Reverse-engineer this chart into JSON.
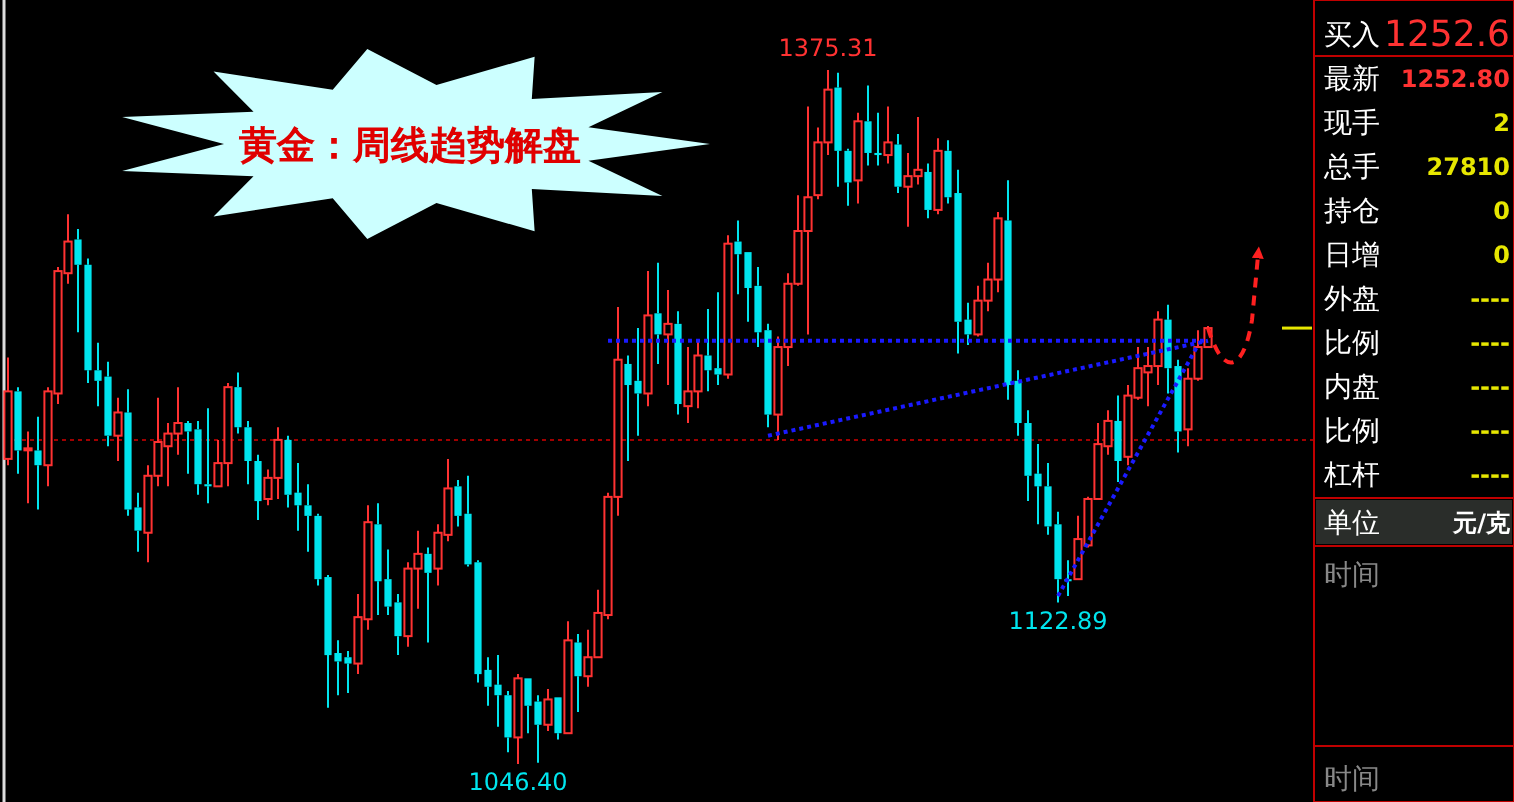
{
  "chart_data": [
    {
      "type": "candlestick",
      "title": "黄金：周线趋势解盘",
      "categories": [
        null,
        null,
        null,
        null,
        null,
        null,
        null,
        null,
        null,
        null,
        null,
        null,
        null,
        null,
        null,
        null,
        null,
        null,
        null,
        null,
        null,
        null,
        null,
        null,
        null,
        null,
        null,
        null,
        null,
        null,
        null,
        null,
        null,
        null,
        null,
        null,
        null,
        null,
        null,
        null,
        null,
        null,
        null,
        null,
        null,
        null,
        null,
        null,
        null,
        null,
        null,
        null,
        null,
        null,
        null,
        null,
        null,
        null,
        null,
        null,
        null,
        null,
        null,
        null,
        null,
        null,
        null,
        null,
        null,
        null,
        null,
        null,
        null,
        null,
        null,
        null,
        null,
        null,
        null,
        null,
        null,
        null,
        null,
        null,
        null,
        null,
        null,
        null,
        null,
        null,
        null,
        null,
        null,
        null,
        null,
        null,
        null,
        null,
        null,
        null,
        null,
        null,
        null,
        null,
        null,
        null,
        null,
        null,
        null,
        null,
        null,
        null,
        null,
        null,
        null,
        null,
        null,
        null,
        null,
        null,
        null
      ],
      "ohlc": [
        [
          1191,
          1239,
          1188,
          1223
        ],
        [
          1223,
          1225,
          1184,
          1195
        ],
        [
          1196,
          1204,
          1170,
          1196
        ],
        [
          1195,
          1211,
          1167,
          1188
        ],
        [
          1188,
          1225,
          1178,
          1223
        ],
        [
          1222,
          1282,
          1217,
          1280
        ],
        [
          1279,
          1307,
          1274,
          1294
        ],
        [
          1295,
          1300,
          1251,
          1283
        ],
        [
          1283,
          1286,
          1227,
          1233
        ],
        [
          1233,
          1246,
          1216,
          1228
        ],
        [
          1230,
          1237,
          1197,
          1202
        ],
        [
          1202,
          1220,
          1190,
          1213
        ],
        [
          1213,
          1224,
          1164,
          1167
        ],
        [
          1168,
          1175,
          1147,
          1157
        ],
        [
          1156,
          1188,
          1142,
          1183
        ],
        [
          1183,
          1220,
          1178,
          1199
        ],
        [
          1197,
          1208,
          1178,
          1203
        ],
        [
          1203,
          1225,
          1193,
          1208
        ],
        [
          1208,
          1209,
          1184,
          1204
        ],
        [
          1205,
          1209,
          1174,
          1179
        ],
        [
          1179,
          1215,
          1170,
          1178
        ],
        [
          1178,
          1200,
          1178,
          1189
        ],
        [
          1189,
          1227,
          1178,
          1225
        ],
        [
          1225,
          1232,
          1203,
          1206
        ],
        [
          1206,
          1209,
          1179,
          1190
        ],
        [
          1190,
          1193,
          1162,
          1171
        ],
        [
          1172,
          1186,
          1169,
          1182
        ],
        [
          1182,
          1206,
          1172,
          1200
        ],
        [
          1200,
          1202,
          1168,
          1174
        ],
        [
          1175,
          1189,
          1157,
          1169
        ],
        [
          1169,
          1179,
          1147,
          1164
        ],
        [
          1164,
          1165,
          1131,
          1134
        ],
        [
          1135,
          1136,
          1073,
          1098
        ],
        [
          1099,
          1105,
          1079,
          1095
        ],
        [
          1097,
          1100,
          1080,
          1094
        ],
        [
          1094,
          1127,
          1089,
          1116
        ],
        [
          1115,
          1169,
          1110,
          1161
        ],
        [
          1160,
          1170,
          1117,
          1133
        ],
        [
          1134,
          1148,
          1117,
          1121
        ],
        [
          1123,
          1127,
          1098,
          1107
        ],
        [
          1107,
          1142,
          1102,
          1139
        ],
        [
          1139,
          1157,
          1120,
          1146
        ],
        [
          1146,
          1149,
          1104,
          1137
        ],
        [
          1139,
          1160,
          1131,
          1156
        ],
        [
          1155,
          1191,
          1152,
          1177
        ],
        [
          1178,
          1181,
          1159,
          1164
        ],
        [
          1165,
          1183,
          1140,
          1141
        ],
        [
          1142,
          1143,
          1085,
          1089
        ],
        [
          1091,
          1097,
          1074,
          1083
        ],
        [
          1084,
          1098,
          1064,
          1079
        ],
        [
          1079,
          1081,
          1052,
          1059
        ],
        [
          1059,
          1089,
          1046.4,
          1087
        ],
        [
          1087,
          1087,
          1061,
          1074
        ],
        [
          1076,
          1079,
          1047,
          1065
        ],
        [
          1065,
          1082,
          1062,
          1077
        ],
        [
          1078,
          1078,
          1058,
          1061
        ],
        [
          1061,
          1114,
          1061,
          1105
        ],
        [
          1104,
          1108,
          1071,
          1088
        ],
        [
          1088,
          1110,
          1083,
          1097
        ],
        [
          1097,
          1129,
          1097,
          1118
        ],
        [
          1117,
          1175,
          1115,
          1173
        ],
        [
          1173,
          1263,
          1164,
          1238
        ],
        [
          1236,
          1240,
          1190,
          1226
        ],
        [
          1228,
          1253,
          1202,
          1222
        ],
        [
          1222,
          1280,
          1216,
          1259
        ],
        [
          1260,
          1284,
          1236,
          1250
        ],
        [
          1250,
          1271,
          1226,
          1255
        ],
        [
          1255,
          1261,
          1212,
          1217
        ],
        [
          1216,
          1244,
          1208,
          1223
        ],
        [
          1223,
          1247,
          1215,
          1240
        ],
        [
          1240,
          1262,
          1223,
          1233
        ],
        [
          1234,
          1270,
          1226,
          1231
        ],
        [
          1231,
          1297,
          1229,
          1293
        ],
        [
          1294,
          1304,
          1269,
          1288
        ],
        [
          1289,
          1289,
          1256,
          1272
        ],
        [
          1273,
          1282,
          1244,
          1251
        ],
        [
          1252,
          1255,
          1206,
          1212
        ],
        [
          1212,
          1249,
          1200,
          1244
        ],
        [
          1244,
          1279,
          1235,
          1274
        ],
        [
          1274,
          1316,
          1273,
          1299
        ],
        [
          1299,
          1358,
          1250,
          1315
        ],
        [
          1316,
          1348,
          1314,
          1341
        ],
        [
          1341,
          1375.31,
          1335,
          1366
        ],
        [
          1367,
          1374,
          1320,
          1337
        ],
        [
          1337,
          1338,
          1311,
          1322
        ],
        [
          1323,
          1355,
          1312,
          1351
        ],
        [
          1351,
          1368,
          1330,
          1336
        ],
        [
          1336,
          1355,
          1330,
          1335
        ],
        [
          1335,
          1358,
          1331,
          1341
        ],
        [
          1340,
          1345,
          1317,
          1320
        ],
        [
          1320,
          1336,
          1301,
          1325
        ],
        [
          1325,
          1353,
          1321,
          1328
        ],
        [
          1327,
          1331,
          1305,
          1309
        ],
        [
          1309,
          1343,
          1307,
          1337
        ],
        [
          1337,
          1342,
          1312,
          1315
        ],
        [
          1317,
          1328,
          1241,
          1256
        ],
        [
          1257,
          1265,
          1245,
          1250
        ],
        [
          1250,
          1273,
          1249,
          1266
        ],
        [
          1266,
          1284,
          1261,
          1276
        ],
        [
          1276,
          1308,
          1270,
          1305
        ],
        [
          1304,
          1323,
          1219,
          1226
        ],
        [
          1228,
          1233,
          1202,
          1208
        ],
        [
          1208,
          1214,
          1171,
          1183
        ],
        [
          1184,
          1198,
          1160,
          1178
        ],
        [
          1178,
          1189,
          1155,
          1159
        ],
        [
          1160,
          1166,
          1122.89,
          1134
        ],
        [
          1134,
          1143,
          1126,
          1133
        ],
        [
          1134,
          1164,
          1134,
          1153
        ],
        [
          1150,
          1173,
          1149,
          1172
        ],
        [
          1172,
          1208,
          1172,
          1198
        ],
        [
          1197,
          1214,
          1193,
          1209
        ],
        [
          1209,
          1221,
          1180,
          1190
        ],
        [
          1192,
          1226,
          1188,
          1221
        ],
        [
          1220,
          1244,
          1219,
          1234
        ],
        [
          1232,
          1244,
          1216,
          1235
        ],
        [
          1235,
          1261,
          1226,
          1257
        ],
        [
          1257,
          1264,
          1222,
          1234
        ],
        [
          1235,
          1238,
          1194,
          1204
        ],
        [
          1205,
          1234,
          1197,
          1229
        ],
        [
          1229,
          1252,
          1228,
          1244
        ],
        [
          1244,
          1254,
          1244,
          1253
        ]
      ],
      "series": [
        {
          "type": "line",
          "color": "#1a1aff",
          "values": [
            null,
            null,
            null,
            null,
            null,
            null,
            null,
            null,
            null,
            null,
            null,
            null,
            null,
            null,
            null,
            null,
            null,
            null,
            null,
            null,
            null,
            null,
            null,
            null,
            null,
            null,
            null,
            null,
            null,
            null,
            null,
            null,
            null,
            null,
            null,
            null,
            null,
            null,
            null,
            null,
            null,
            null,
            null,
            null,
            null,
            null,
            null,
            null,
            null,
            null,
            null,
            null,
            null,
            null,
            null,
            null,
            null,
            null,
            null,
            null,
            1247,
            null,
            null,
            null,
            null,
            null,
            null,
            null,
            null,
            null,
            null,
            null,
            null,
            null,
            null,
            null,
            null,
            null,
            null,
            null,
            null,
            null,
            null,
            null,
            null,
            null,
            null,
            null,
            null,
            null,
            null,
            null,
            null,
            null,
            null,
            null,
            null,
            null,
            null,
            null,
            null,
            null,
            null,
            null,
            null,
            null,
            null,
            null,
            null,
            null,
            null,
            null,
            null,
            null,
            null,
            null,
            null,
            null,
            null,
            null,
            1247
          ]
        },
        {
          "type": "line",
          "color": "#1a1aff",
          "values": [
            null,
            null,
            null,
            null,
            null,
            null,
            null,
            null,
            null,
            null,
            null,
            null,
            null,
            null,
            null,
            null,
            null,
            null,
            null,
            null,
            null,
            null,
            null,
            null,
            null,
            null,
            null,
            null,
            null,
            null,
            null,
            null,
            null,
            null,
            null,
            null,
            null,
            null,
            null,
            null,
            null,
            null,
            null,
            null,
            null,
            null,
            null,
            null,
            null,
            null,
            null,
            null,
            null,
            null,
            null,
            null,
            null,
            null,
            null,
            null,
            null,
            null,
            null,
            null,
            null,
            null,
            null,
            null,
            null,
            null,
            null,
            null,
            null,
            null,
            null,
            null,
            1202,
            null,
            null,
            null,
            null,
            null,
            null,
            null,
            null,
            null,
            null,
            null,
            null,
            null,
            null,
            null,
            null,
            null,
            null,
            null,
            null,
            null,
            null,
            null,
            null,
            null,
            null,
            null,
            null,
            null,
            null,
            null,
            null,
            null,
            null,
            null,
            null,
            null,
            null,
            null,
            null,
            null,
            null,
            null,
            1247
          ]
        },
        {
          "type": "line",
          "color": "#1a1aff",
          "values": [
            null,
            null,
            null,
            null,
            null,
            null,
            null,
            null,
            null,
            null,
            null,
            null,
            null,
            null,
            null,
            null,
            null,
            null,
            null,
            null,
            null,
            null,
            null,
            null,
            null,
            null,
            null,
            null,
            null,
            null,
            null,
            null,
            null,
            null,
            null,
            null,
            null,
            null,
            null,
            null,
            null,
            null,
            null,
            null,
            null,
            null,
            null,
            null,
            null,
            null,
            null,
            null,
            null,
            null,
            null,
            null,
            null,
            null,
            null,
            null,
            null,
            null,
            null,
            null,
            null,
            null,
            null,
            null,
            null,
            null,
            null,
            null,
            null,
            null,
            null,
            null,
            null,
            null,
            null,
            null,
            null,
            null,
            null,
            null,
            null,
            null,
            null,
            null,
            null,
            null,
            null,
            null,
            null,
            null,
            null,
            null,
            null,
            null,
            null,
            null,
            null,
            null,
            null,
            null,
            null,
            1126,
            null,
            null,
            null,
            null,
            null,
            null,
            null,
            null,
            null,
            null,
            null,
            null,
            null,
            1245,
            null
          ]
        }
      ],
      "line_style": "dotted",
      "ref_lines": [
        {
          "axis": "y",
          "value": 1200,
          "color": "#a00000",
          "line_style": "dotted"
        }
      ],
      "annotations": [
        {
          "text": "1375.31",
          "y": 1375.31
        },
        {
          "text": "1122.89",
          "y": 1122.89
        },
        {
          "text": "1046.40",
          "y": 1046.4
        }
      ]
    },
    {
      "type": "other",
      "categories": [
        "买入",
        "最新",
        "现手",
        "总手",
        "持仓",
        "日增",
        "外盘",
        "比例",
        "内盘",
        "比例",
        "杠杆",
        "单位",
        "时间",
        "时间"
      ],
      "value_labels": [
        "1252.6",
        "1252.80",
        "2",
        "27810",
        "0",
        "0",
        "----",
        "----",
        "----",
        "----",
        "----",
        "元/克",
        null,
        null
      ]
    }
  ]
}
